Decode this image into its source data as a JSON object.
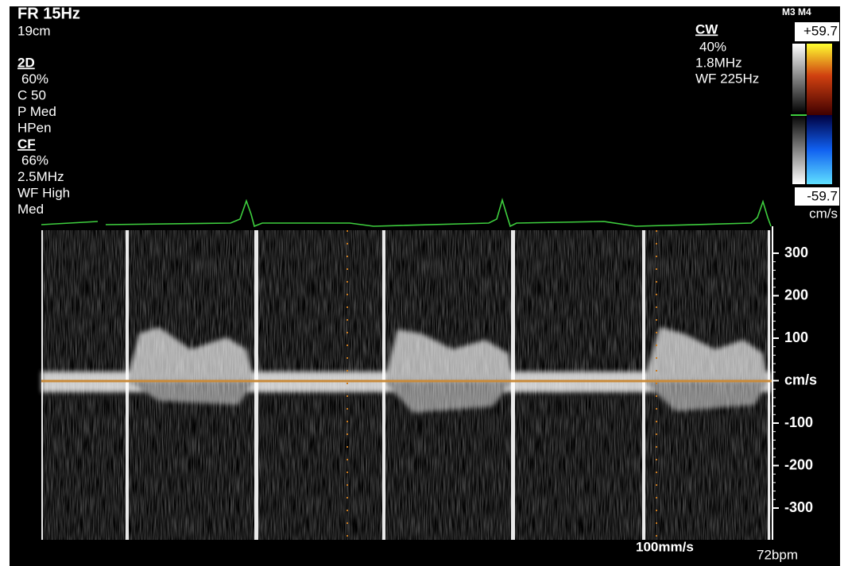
{
  "header": {
    "frame_rate": "FR 15Hz",
    "depth": "19cm"
  },
  "modes": [
    {
      "title": "2D",
      "lines": [
        "60%",
        "C 50",
        "P Med",
        "HPen"
      ]
    },
    {
      "title": "CF",
      "lines": [
        "66%",
        "2.5MHz",
        "WF High",
        "Med"
      ]
    }
  ],
  "doppler": {
    "title": "CW",
    "lines": [
      "40%",
      "1.8MHz",
      "WF 225Hz"
    ]
  },
  "color_bar": {
    "label": "M3 M4",
    "max": "+59.7",
    "min": "-59.7",
    "unit": "cm/s"
  },
  "velocity_scale": {
    "labels": [
      "300",
      "200",
      "100",
      "cm/s",
      "-100",
      "-200",
      "-300"
    ]
  },
  "footer": {
    "sweep_speed": "100mm/s",
    "heart_rate": "72bpm"
  }
}
